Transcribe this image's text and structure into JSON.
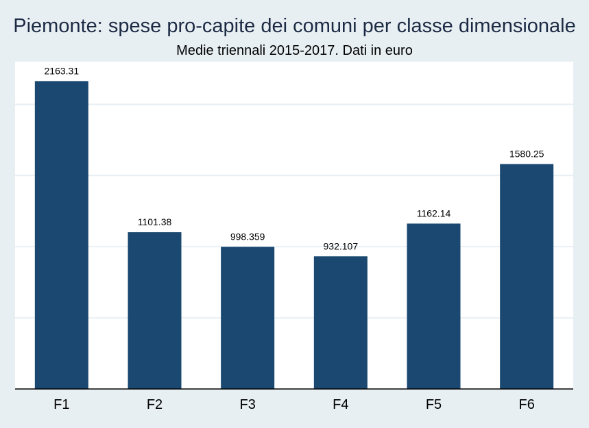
{
  "chart_data": {
    "type": "bar",
    "title": "Piemonte: spese pro-capite dei comuni per classe dimensionale",
    "subtitle": "Medie triennali 2015-2017. Dati in euro",
    "categories": [
      "F1",
      "F2",
      "F3",
      "F4",
      "F5",
      "F6"
    ],
    "values": [
      2163.31,
      1101.38,
      998.359,
      932.107,
      1162.14,
      1580.25
    ],
    "data_labels": [
      "2163.31",
      "1101.38",
      "998.359",
      "932.107",
      "1162.14",
      "1580.25"
    ],
    "xlabel": "",
    "ylabel": "",
    "ylim": [
      0,
      2300
    ],
    "y_gridlines": [
      500,
      1000,
      1500,
      2000
    ],
    "y_tick_labels_shown": false,
    "grid": true,
    "legend": "none",
    "bar_color": "#1a4870",
    "plot_background": "#ffffff",
    "page_background": "#e8eff3"
  }
}
